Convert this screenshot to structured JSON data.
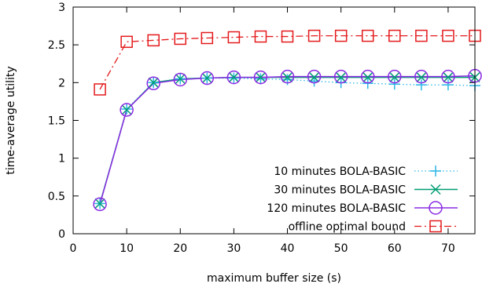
{
  "chart_data": {
    "type": "line",
    "xlabel": "maximum buffer size (s)",
    "ylabel": "time-average utility",
    "xlim": [
      0,
      75
    ],
    "ylim": [
      0,
      3
    ],
    "xticks": [
      0,
      10,
      20,
      30,
      40,
      50,
      60,
      70
    ],
    "yticks": [
      0,
      0.5,
      1,
      1.5,
      2,
      2.5,
      3
    ],
    "xtick_labels": [
      "0",
      "10",
      "20",
      "30",
      "40",
      "50",
      "60",
      "70"
    ],
    "ytick_labels": [
      "0",
      "0.5",
      "1",
      "1.5",
      "2",
      "2.5",
      "3"
    ],
    "grid": false,
    "legend_position": "bottom-right",
    "x": [
      5,
      10,
      15,
      20,
      25,
      30,
      35,
      40,
      45,
      50,
      55,
      60,
      65,
      70,
      75
    ],
    "series": [
      {
        "name": "10 minutes BOLA-BASIC",
        "color": "#2ab6e6",
        "marker": "plus",
        "line": "dotted",
        "values": [
          0.4,
          1.65,
          2.0,
          2.05,
          2.06,
          2.06,
          2.05,
          2.04,
          2.02,
          2.0,
          1.99,
          1.98,
          1.97,
          1.97,
          1.96
        ]
      },
      {
        "name": "30 minutes BOLA-BASIC",
        "color": "#009e73",
        "marker": "x",
        "line": "solid",
        "values": [
          0.4,
          1.64,
          2.0,
          2.05,
          2.06,
          2.07,
          2.07,
          2.07,
          2.07,
          2.07,
          2.07,
          2.07,
          2.07,
          2.07,
          2.07
        ]
      },
      {
        "name": "120 minutes BOLA-BASIC",
        "color": "#8a2be2",
        "marker": "circle",
        "line": "solid",
        "values": [
          0.39,
          1.64,
          1.99,
          2.04,
          2.06,
          2.07,
          2.07,
          2.08,
          2.08,
          2.08,
          2.08,
          2.08,
          2.08,
          2.08,
          2.09
        ]
      },
      {
        "name": "offline optimal bound",
        "color": "#e41a1c",
        "marker": "square",
        "line": "dashdot",
        "values": [
          1.91,
          2.54,
          2.56,
          2.58,
          2.59,
          2.6,
          2.61,
          2.61,
          2.62,
          2.62,
          2.62,
          2.62,
          2.62,
          2.62,
          2.62
        ]
      }
    ]
  }
}
